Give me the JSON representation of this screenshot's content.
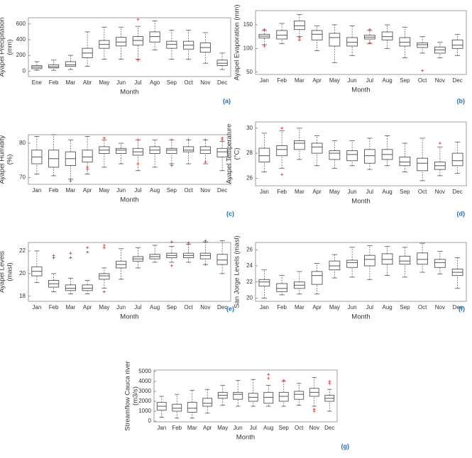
{
  "chart_data": [
    {
      "type": "box",
      "label": "(a)",
      "xlabel": "Month",
      "ylabel": [
        "Ayapel Precipitation",
        "(mm)"
      ],
      "categories": [
        "Ene",
        "Feb",
        "Mar",
        "Abr",
        "May",
        "Jun",
        "Jul",
        "Ago",
        "Sep",
        "Oct",
        "Nov",
        "Dec"
      ],
      "low": [
        10,
        10,
        20,
        60,
        150,
        150,
        150,
        270,
        150,
        150,
        100,
        20
      ],
      "q1": [
        30,
        40,
        60,
        170,
        290,
        320,
        330,
        370,
        290,
        280,
        240,
        70
      ],
      "median": [
        50,
        55,
        80,
        230,
        340,
        370,
        390,
        440,
        340,
        330,
        300,
        100
      ],
      "q3": [
        70,
        80,
        120,
        290,
        390,
        430,
        440,
        500,
        380,
        380,
        360,
        140
      ],
      "high": [
        120,
        140,
        200,
        500,
        560,
        560,
        570,
        640,
        520,
        520,
        490,
        230
      ],
      "outliers": [
        [],
        [],
        [],
        [],
        [],
        [],
        [
          140,
          660
        ],
        [],
        [],
        [],
        [],
        []
      ],
      "ylim": [
        -70,
        680
      ],
      "yticks": [
        0,
        200,
        400,
        600
      ],
      "box_color": "#555",
      "outlier_color": "#e03030"
    },
    {
      "type": "box",
      "label": "(b)",
      "xlabel": "Month",
      "ylabel": [
        "Ayapel Evaporation (mm)"
      ],
      "categories": [
        "Jan",
        "Feb",
        "Mar",
        "Apr",
        "May",
        "Jun",
        "Jul",
        "Aug",
        "Sep",
        "Oct",
        "Nov",
        "Dec"
      ],
      "low": [
        108,
        110,
        125,
        95,
        70,
        85,
        110,
        100,
        80,
        90,
        80,
        85
      ],
      "q1": [
        122,
        120,
        140,
        118,
        105,
        105,
        120,
        118,
        105,
        102,
        90,
        100
      ],
      "median": [
        126,
        128,
        148,
        130,
        123,
        113,
        124,
        125,
        113,
        108,
        97,
        107
      ],
      "q3": [
        130,
        138,
        158,
        138,
        132,
        123,
        128,
        135,
        123,
        112,
        103,
        118
      ],
      "high": [
        138,
        153,
        172,
        148,
        150,
        148,
        138,
        150,
        145,
        125,
        113,
        130
      ],
      "outliers": [
        [
          105,
          140
        ],
        [],
        [
          118,
          123
        ],
        [],
        [],
        [],
        [
          112,
          140
        ],
        [],
        [],
        [
          53
        ],
        [],
        []
      ],
      "ylim": [
        45,
        180
      ],
      "yticks": [
        50,
        100,
        150
      ],
      "box_color": "#555",
      "outlier_color": "#e03030"
    },
    {
      "type": "box",
      "label": "(c)",
      "xlabel": "Month",
      "ylabel": [
        "Ayapel Humidity",
        "(%)"
      ],
      "categories": [
        "Jan",
        "Feb",
        "Mar",
        "Apr",
        "May",
        "Jun",
        "Jul",
        "Aug",
        "Sep",
        "Oct",
        "Nov",
        "Dec"
      ],
      "low": [
        71,
        70.5,
        69.5,
        71,
        73,
        74,
        72,
        73,
        74,
        74,
        74,
        72
      ],
      "q1": [
        74,
        73,
        73.5,
        74.5,
        77,
        77,
        76.5,
        77,
        77,
        77.5,
        77,
        76
      ],
      "median": [
        76,
        75.5,
        75.5,
        76,
        78,
        78,
        77.5,
        78,
        78,
        78,
        78,
        77.5
      ],
      "q3": [
        78,
        78,
        77.5,
        78,
        79,
        78.5,
        78.5,
        79,
        78.5,
        79,
        79,
        78.5
      ],
      "high": [
        82,
        82.5,
        81,
        82,
        81,
        80,
        81,
        81,
        81,
        81,
        81,
        80.5
      ],
      "outliers": [
        [],
        [],
        [
          69
        ],
        [
          73,
          72.5
        ],
        [
          81.5
        ],
        [],
        [
          74,
          81
        ],
        [],
        [
          73.5,
          81
        ],
        [
          81
        ],
        [
          74.5,
          81
        ],
        [
          81,
          81.5
        ]
      ],
      "ylim": [
        68,
        82.5
      ],
      "yticks": [
        70,
        80
      ],
      "box_color": "#555",
      "outlier_color": "#e03030"
    },
    {
      "type": "box",
      "label": "(d)",
      "xlabel": "Month",
      "ylabel": [
        "Ayapel Temperature",
        "(°C)"
      ],
      "categories": [
        "Jan",
        "Feb",
        "Mar",
        "Apr",
        "May",
        "Jun",
        "Jul",
        "Aug",
        "Sep",
        "Oct",
        "Nov",
        "Dec"
      ],
      "low": [
        26.5,
        26.8,
        27.5,
        27,
        26.8,
        27,
        26.7,
        27,
        26.5,
        25.8,
        26.2,
        26.4
      ],
      "q1": [
        27.3,
        27.8,
        28.3,
        28,
        27.5,
        27.4,
        27.2,
        27.5,
        27,
        26.6,
        26.7,
        27
      ],
      "median": [
        27.8,
        28.3,
        28.8,
        28.5,
        28,
        27.9,
        27.8,
        27.9,
        27.3,
        27.2,
        27,
        27.4
      ],
      "q3": [
        28.4,
        28.6,
        29,
        28.8,
        28.2,
        28.2,
        28.3,
        28.3,
        27.7,
        27.6,
        27.3,
        28
      ],
      "high": [
        29.6,
        29.8,
        30,
        29.4,
        29,
        29,
        29.2,
        29.4,
        28.8,
        29.2,
        28.5,
        28.9
      ],
      "outliers": [
        [],
        [
          26.3,
          30
        ],
        [],
        [],
        [],
        [],
        [],
        [],
        [],
        [],
        [
          28.8
        ],
        []
      ],
      "ylim": [
        25.4,
        30.5
      ],
      "yticks": [
        26,
        28,
        30
      ],
      "box_color": "#555",
      "outlier_color": "#e03030"
    },
    {
      "type": "box",
      "label": "(e)",
      "xlabel": "Month",
      "ylabel": [
        "Ayapel Levels",
        "(masl)"
      ],
      "categories": [
        "Jan",
        "Feb",
        "Mar",
        "Apr",
        "May",
        "Jun",
        "Jul",
        "Aug",
        "Sep",
        "Oct",
        "Nov",
        "Dec"
      ],
      "low": [
        19.2,
        18.4,
        18.2,
        18.2,
        18.7,
        19.5,
        20.5,
        21,
        21,
        21,
        20.8,
        20
      ],
      "q1": [
        19.8,
        18.8,
        18.5,
        18.5,
        19.5,
        20.5,
        21.1,
        21.3,
        21.4,
        21.4,
        21.3,
        20.8
      ],
      "median": [
        20.2,
        19.1,
        18.7,
        18.7,
        19.8,
        20.8,
        21.3,
        21.5,
        21.6,
        21.6,
        21.6,
        21.2
      ],
      "q3": [
        20.6,
        19.4,
        19,
        19,
        20,
        21.1,
        21.5,
        21.7,
        21.8,
        21.8,
        21.8,
        21.7
      ],
      "high": [
        22,
        20,
        19.6,
        19.4,
        20.5,
        22.2,
        22.3,
        22.5,
        22.4,
        22.6,
        22.8,
        22.9
      ],
      "outliers": [
        [],
        [
          21.6,
          21.4
        ],
        [
          21.8,
          21.4
        ],
        [
          22.3,
          21.9
        ],
        [
          22.5,
          22.3,
          18.4
        ],
        [],
        [],
        [],
        [
          22.8,
          20.7
        ],
        [
          22.7
        ],
        [
          22.9,
          20.8
        ],
        []
      ],
      "ylim": [
        17.55,
        22.75
      ],
      "yticks": [
        18,
        20,
        22
      ],
      "box_color": "#555",
      "outlier_color": "#e03030"
    },
    {
      "type": "box",
      "label": "(f)",
      "xlabel": "Month",
      "ylabel": [
        "San Jorge Levels (masl)"
      ],
      "categories": [
        "Jan",
        "Feb",
        "Mar",
        "Apr",
        "May",
        "Jun",
        "Jul",
        "Aug",
        "Sep",
        "Oct",
        "Nov",
        "Dec"
      ],
      "low": [
        20,
        20.4,
        20.5,
        20.5,
        22.5,
        22.6,
        22.3,
        22.8,
        22.6,
        23.2,
        23,
        21.2
      ],
      "q1": [
        21.5,
        20.8,
        21.2,
        21.7,
        23.5,
        23.8,
        24,
        24.2,
        24.2,
        24.2,
        23.8,
        22.8
      ],
      "median": [
        22,
        21.2,
        21.6,
        22.8,
        24,
        24.4,
        24.8,
        24.8,
        24.6,
        24.8,
        24.4,
        23.2
      ],
      "q3": [
        22.3,
        21.8,
        22,
        23.3,
        24.6,
        24.7,
        25.3,
        25.5,
        25.2,
        25.6,
        24.8,
        23.6
      ],
      "high": [
        23.5,
        22.8,
        23.3,
        24.3,
        25.4,
        26.3,
        26.5,
        26.4,
        26.3,
        26.8,
        25.8,
        25
      ],
      "outliers": [
        [],
        [],
        [],
        [],
        [],
        [],
        [],
        [],
        [],
        [],
        [],
        []
      ],
      "ylim": [
        19.6,
        26.9
      ],
      "yticks": [
        20,
        22,
        24,
        26
      ],
      "box_color": "#555",
      "outlier_color": "#e03030"
    },
    {
      "type": "box",
      "label": "(g)",
      "xlabel": "Month",
      "ylabel": [
        "Streamflow Cauca river",
        "(m3/s)"
      ],
      "categories": [
        "Jan",
        "Feb",
        "Mar",
        "Apr",
        "May",
        "Jun",
        "Jul",
        "Aug",
        "Sep",
        "Oct",
        "Nov",
        "Dec"
      ],
      "low": [
        400,
        300,
        300,
        800,
        1600,
        1500,
        1500,
        1500,
        1500,
        1600,
        1500,
        1000
      ],
      "q1": [
        1100,
        1000,
        900,
        1500,
        2300,
        2200,
        2000,
        1800,
        2000,
        2200,
        2500,
        2000
      ],
      "median": [
        1500,
        1300,
        1300,
        1800,
        2600,
        2700,
        2400,
        2400,
        2500,
        2700,
        2900,
        2300
      ],
      "q3": [
        1900,
        1700,
        1900,
        2300,
        2900,
        2900,
        2800,
        2900,
        2900,
        3000,
        3300,
        2600
      ],
      "high": [
        2500,
        2700,
        3100,
        3200,
        3600,
        4100,
        4200,
        3600,
        4000,
        3800,
        4400,
        3200
      ],
      "outliers": [
        [],
        [],
        [],
        [],
        [],
        [],
        [],
        [
          4700,
          4300
        ],
        [
          4100
        ],
        [],
        [
          1200,
          1000
        ],
        [
          3800,
          4000
        ]
      ],
      "ylim": [
        -70,
        5140
      ],
      "yticks": [
        0,
        1000,
        2000,
        3000,
        4000,
        5000
      ],
      "box_color": "#555",
      "outlier_color": "#e03030"
    }
  ]
}
